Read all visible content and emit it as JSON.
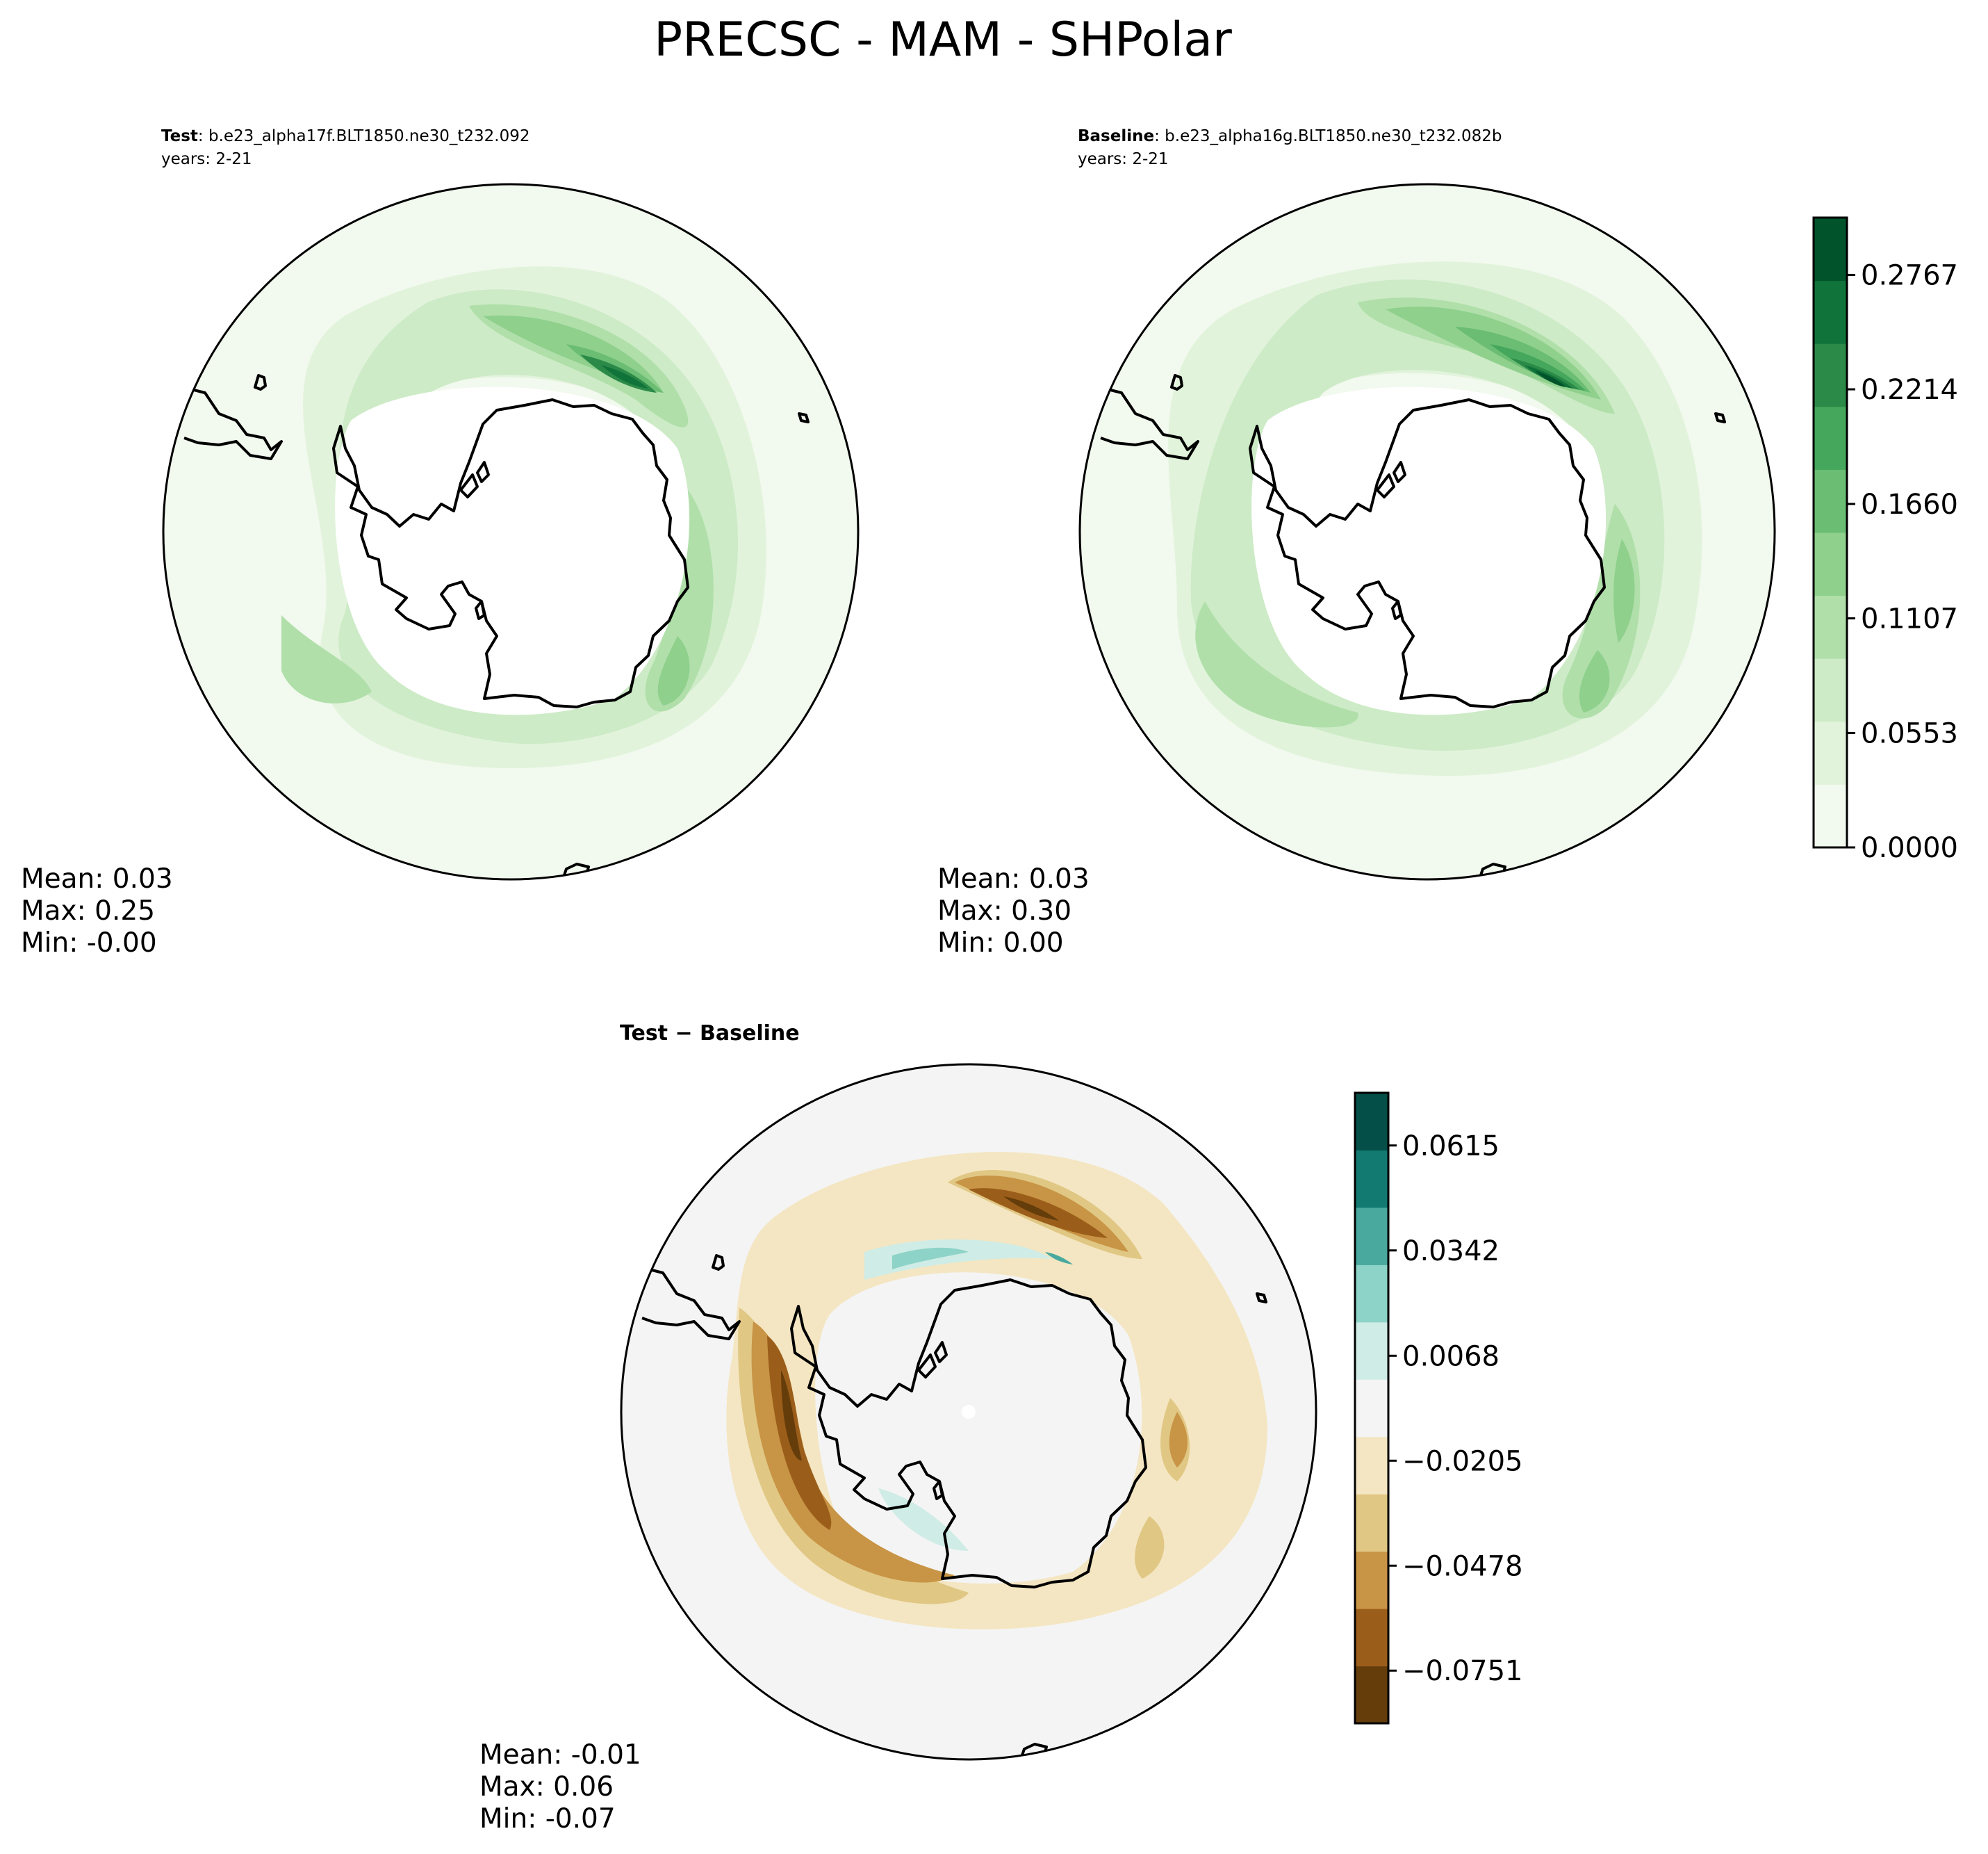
{
  "suptitle": "PRECSC - MAM - SHPolar",
  "panels": {
    "test": {
      "label": "Test",
      "case": ": b.e23_alpha17f.BLT1850.ne30_t232.092",
      "years": "years: 2-21",
      "stats": {
        "mean": "Mean:  0.03",
        "max": "Max:  0.25",
        "min": "Min: -0.00"
      }
    },
    "baseline": {
      "label": "Baseline",
      "case": ": b.e23_alpha16g.BLT1850.ne30_t232.082b",
      "years": "years: 2-21",
      "stats": {
        "mean": "Mean:  0.03",
        "max": "Max:  0.30",
        "min": "Min:  0.00"
      }
    },
    "diff": {
      "title": "Test − Baseline",
      "stats": {
        "mean": "Mean: -0.01",
        "max": "Max:  0.06",
        "min": "Min: -0.07"
      }
    }
  },
  "chart_data": [
    {
      "type": "heatmap",
      "panel": "Test",
      "projection": "south polar stereographic",
      "colorbar": {
        "colors": [
          "#f2f9ee",
          "#e2f3dc",
          "#cdebc6",
          "#b0dfaa",
          "#8fd08c",
          "#6abd73",
          "#45a75b",
          "#2b8a48",
          "#10733a",
          "#00532a"
        ],
        "ticks": [
          "0.0000",
          "0.0553",
          "0.1107",
          "0.1660",
          "0.2214",
          "0.2767"
        ],
        "range": [
          0,
          0.3044
        ]
      }
    },
    {
      "type": "heatmap",
      "panel": "Baseline",
      "projection": "south polar stereographic",
      "colorbar": {
        "colors": [
          "#f2f9ee",
          "#e2f3dc",
          "#cdebc6",
          "#b0dfaa",
          "#8fd08c",
          "#6abd73",
          "#45a75b",
          "#2b8a48",
          "#10733a",
          "#00532a"
        ],
        "ticks": [
          "0.0000",
          "0.0553",
          "0.1107",
          "0.1660",
          "0.2214",
          "0.2767"
        ],
        "range": [
          0,
          0.3044
        ]
      }
    },
    {
      "type": "heatmap",
      "panel": "Test − Baseline",
      "projection": "south polar stereographic",
      "colorbar": {
        "colors": [
          "#653d0b",
          "#9b5e1a",
          "#c89445",
          "#e0c784",
          "#f4e6c2",
          "#f4f4f4",
          "#cfece6",
          "#8dd3c7",
          "#49a99e",
          "#137a72",
          "#044f47"
        ],
        "ticks": [
          "−0.0751",
          "−0.0478",
          "−0.0205",
          "0.0068",
          "0.0342",
          "0.0615"
        ],
        "range": [
          -0.0888,
          0.0752
        ]
      }
    }
  ]
}
